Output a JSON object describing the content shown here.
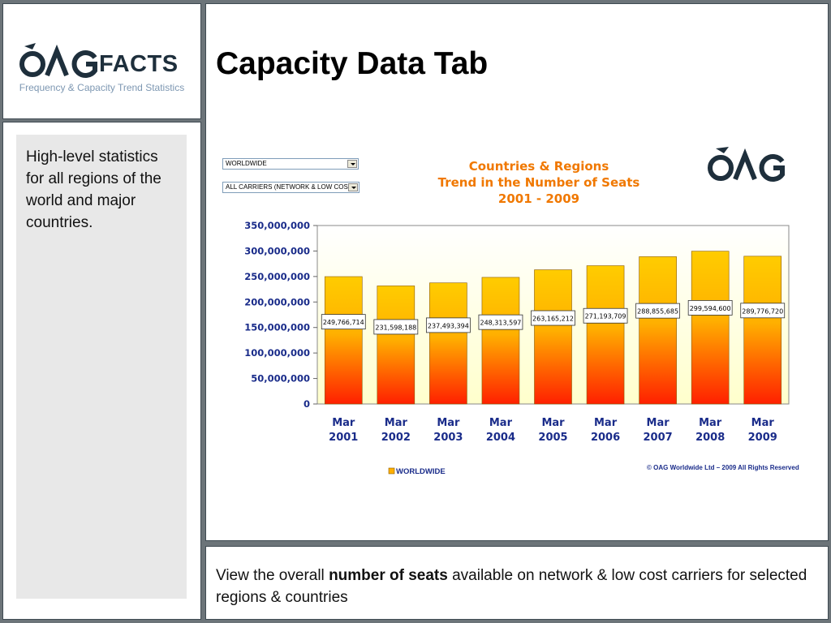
{
  "brand": {
    "logo_word": "FACTS",
    "tagline": "Frequency & Capacity Trend Statistics"
  },
  "sidebar": {
    "description": "High-level statistics for all regions of the world and major countries."
  },
  "page": {
    "title": "Capacity Data Tab"
  },
  "filters": {
    "region_value": "WORLDWIDE",
    "carrier_value": "ALL CARRIERS (NETWORK & LOW COST)"
  },
  "chart_header": {
    "line1": "Countries & Regions",
    "line2": "Trend in the Number of Seats",
    "line3": "2001 - 2009"
  },
  "copyright": "© OAG Worldwide Ltd – 2009 All Rights Reserved",
  "footer": {
    "text_before": "View the overall ",
    "text_bold": "number of seats",
    "text_after": " available on network & low cost carriers for selected regions & countries"
  },
  "colors": {
    "bar_top": "#ffcc00",
    "bar_bottom": "#ff2a00",
    "axis_text": "#1a2c8a",
    "title": "#f07800",
    "plot_bg_top": "#ffffff",
    "plot_bg_bottom": "#ffffcc"
  },
  "chart_data": {
    "type": "bar",
    "title": "Countries & Regions\nTrend in the Number of Seats\n2001 - 2009",
    "categories": [
      [
        "Mar",
        "2001"
      ],
      [
        "Mar",
        "2002"
      ],
      [
        "Mar",
        "2003"
      ],
      [
        "Mar",
        "2004"
      ],
      [
        "Mar",
        "2005"
      ],
      [
        "Mar",
        "2006"
      ],
      [
        "Mar",
        "2007"
      ],
      [
        "Mar",
        "2008"
      ],
      [
        "Mar",
        "2009"
      ]
    ],
    "series": [
      {
        "name": "WORLDWIDE",
        "values": [
          249766714,
          231598188,
          237493394,
          248313597,
          263165212,
          271193709,
          288855685,
          299594600,
          289776720
        ],
        "labels": [
          "249,766,714",
          "231,598,188",
          "237,493,394",
          "248,313,597",
          "263,165,212",
          "271,193,709",
          "288,855,685",
          "299,594,600",
          "289,776,720"
        ]
      }
    ],
    "ylim": [
      0,
      350000000
    ],
    "yticks": [
      0,
      50000000,
      100000000,
      150000000,
      200000000,
      250000000,
      300000000,
      350000000
    ],
    "ytick_labels": [
      "0",
      "50,000,000",
      "100,000,000",
      "150,000,000",
      "200,000,000",
      "250,000,000",
      "300,000,000",
      "350,000,000"
    ],
    "xlabel": "",
    "ylabel": "",
    "grid": false,
    "legend": "bottom-left"
  }
}
